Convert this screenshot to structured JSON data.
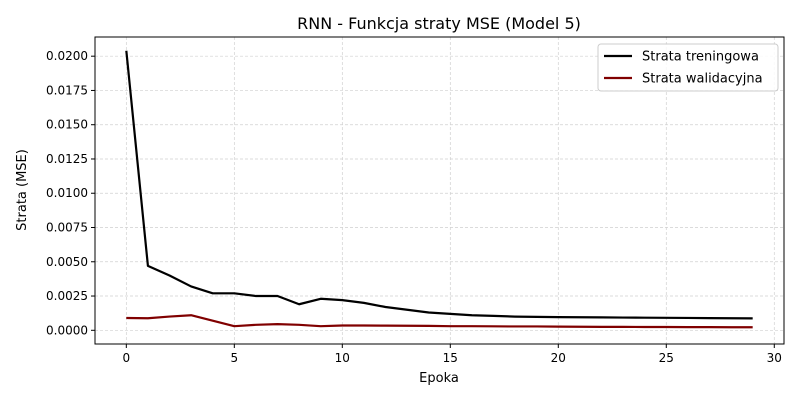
{
  "chart_data": {
    "type": "line",
    "title": "RNN - Funkcja straty MSE (Model 5)",
    "xlabel": "Epoka",
    "ylabel": "Strata (MSE)",
    "xlim": [
      -1.45,
      30.45
    ],
    "ylim": [
      -0.001,
      0.0214
    ],
    "xticks": [
      0,
      5,
      10,
      15,
      20,
      25,
      30
    ],
    "xtick_labels": [
      "0",
      "5",
      "10",
      "15",
      "20",
      "25",
      "30"
    ],
    "yticks": [
      0,
      0.0025,
      0.005,
      0.0075,
      0.01,
      0.0125,
      0.015,
      0.0175,
      0.02
    ],
    "ytick_labels": [
      "0.0000",
      "0.0025",
      "0.0050",
      "0.0075",
      "0.0100",
      "0.0125",
      "0.0150",
      "0.0175",
      "0.0200"
    ],
    "grid": true,
    "legend_position": "top-right",
    "x": [
      0,
      1,
      2,
      3,
      4,
      5,
      6,
      7,
      8,
      9,
      10,
      11,
      12,
      13,
      14,
      15,
      16,
      17,
      18,
      19,
      20,
      21,
      22,
      23,
      24,
      25,
      26,
      27,
      28,
      29
    ],
    "series": [
      {
        "name": "Strata treningowa",
        "color": "#000000",
        "values": [
          0.0204,
          0.0047,
          0.004,
          0.0032,
          0.0027,
          0.0027,
          0.0025,
          0.0025,
          0.0019,
          0.0023,
          0.0022,
          0.002,
          0.0017,
          0.0015,
          0.0013,
          0.0012,
          0.0011,
          0.00105,
          0.001,
          0.00098,
          0.00096,
          0.00095,
          0.00094,
          0.00093,
          0.00092,
          0.00091,
          0.0009,
          0.00089,
          0.00088,
          0.00087
        ]
      },
      {
        "name": "Strata walidacyjna",
        "color": "#800000",
        "values": [
          0.0009,
          0.00088,
          0.001,
          0.0011,
          0.0007,
          0.0003,
          0.0004,
          0.00045,
          0.0004,
          0.0003,
          0.00035,
          0.00035,
          0.00034,
          0.00033,
          0.00032,
          0.0003,
          0.0003,
          0.00029,
          0.00028,
          0.00028,
          0.00027,
          0.00026,
          0.00025,
          0.00025,
          0.00024,
          0.00024,
          0.00023,
          0.00023,
          0.00022,
          0.00022
        ]
      }
    ]
  }
}
